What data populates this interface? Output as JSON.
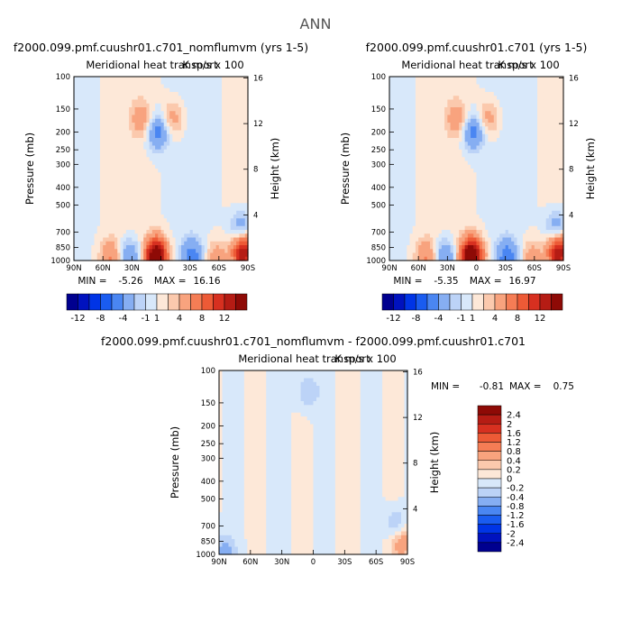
{
  "title": "ANN",
  "variable": "Meridional heat transport",
  "units": "K m/s x 100",
  "ylabel": "Pressure (mb)",
  "ylabel_right": "Height (km)",
  "chart_data": [
    {
      "type": "heatmap",
      "case": "f2000.099.pmf.cuushr01.c701_nomflumvm (yrs 1-5)",
      "x_ticks": [
        "90N",
        "60N",
        "30N",
        "0",
        "30S",
        "60S",
        "90S"
      ],
      "x_values": [
        90,
        60,
        30,
        0,
        -30,
        -60,
        -90
      ],
      "y_ticks": [
        "100",
        "150",
        "200",
        "250",
        "300",
        "400",
        "500",
        "700",
        "850",
        "1000"
      ],
      "y_values": [
        100,
        150,
        200,
        250,
        300,
        400,
        500,
        700,
        850,
        1000
      ],
      "ylim": [
        100,
        1000
      ],
      "y_scale": "log",
      "height_ticks": [
        "16",
        "12",
        "8",
        "4"
      ],
      "height_values": [
        16,
        12,
        8,
        4
      ],
      "min_label": "MIN =",
      "min": "-5.26",
      "max_label": "MAX =",
      "max": "16.16",
      "levels": [
        -12,
        -10,
        -8,
        -6,
        -4,
        -2,
        -1,
        0,
        1,
        2,
        4,
        6,
        8,
        10,
        12
      ],
      "colorbar_labels": [
        "-12",
        "-8",
        "-4",
        "-1",
        "1",
        "4",
        "8",
        "12"
      ],
      "features": [
        {
          "lat": 5,
          "p": 950,
          "value": 16.0
        },
        {
          "lat": -32,
          "p": 960,
          "value": -5.0
        },
        {
          "lat": 32,
          "p": 960,
          "value": -4.5
        },
        {
          "lat": 52,
          "p": 960,
          "value": 4.0
        },
        {
          "lat": -57,
          "p": 960,
          "value": 3.0
        },
        {
          "lat": -85,
          "p": 900,
          "value": 12.0
        },
        {
          "lat": -83,
          "p": 680,
          "value": -4.0
        },
        {
          "lat": 3,
          "p": 200,
          "value": -5.0
        },
        {
          "lat": 20,
          "p": 170,
          "value": 3.0
        },
        {
          "lat": -12,
          "p": 170,
          "value": 3.0
        }
      ]
    },
    {
      "type": "heatmap",
      "case": "f2000.099.pmf.cuushr01.c701 (yrs 1-5)",
      "x_ticks": [
        "90N",
        "60N",
        "30N",
        "0",
        "30S",
        "60S",
        "90S"
      ],
      "x_values": [
        90,
        60,
        30,
        0,
        -30,
        -60,
        -90
      ],
      "y_ticks": [
        "100",
        "150",
        "200",
        "250",
        "300",
        "400",
        "500",
        "700",
        "850",
        "1000"
      ],
      "y_values": [
        100,
        150,
        200,
        250,
        300,
        400,
        500,
        700,
        850,
        1000
      ],
      "ylim": [
        100,
        1000
      ],
      "y_scale": "log",
      "height_ticks": [
        "16",
        "12",
        "8",
        "4"
      ],
      "height_values": [
        16,
        12,
        8,
        4
      ],
      "min_label": "MIN =",
      "min": "-5.35",
      "max_label": "MAX =",
      "max": "16.97",
      "levels": [
        -12,
        -10,
        -8,
        -6,
        -4,
        -2,
        -1,
        0,
        1,
        2,
        4,
        6,
        8,
        10,
        12
      ],
      "colorbar_labels": [
        "-12",
        "-8",
        "-4",
        "-1",
        "1",
        "4",
        "8",
        "12"
      ],
      "features": [
        {
          "lat": 5,
          "p": 950,
          "value": 17.0
        },
        {
          "lat": -32,
          "p": 960,
          "value": -5.2
        },
        {
          "lat": 32,
          "p": 960,
          "value": -4.5
        },
        {
          "lat": 52,
          "p": 960,
          "value": 4.0
        },
        {
          "lat": -57,
          "p": 960,
          "value": 3.0
        },
        {
          "lat": -85,
          "p": 900,
          "value": 12.0
        },
        {
          "lat": -83,
          "p": 680,
          "value": -4.0
        },
        {
          "lat": 3,
          "p": 200,
          "value": -5.0
        },
        {
          "lat": 20,
          "p": 170,
          "value": 3.0
        },
        {
          "lat": -12,
          "p": 170,
          "value": 3.0
        }
      ]
    },
    {
      "type": "heatmap",
      "case": "f2000.099.pmf.cuushr01.c701_nomflumvm - f2000.099.pmf.cuushr01.c701",
      "x_ticks": [
        "90N",
        "60N",
        "30N",
        "0",
        "30S",
        "60S",
        "90S"
      ],
      "x_values": [
        90,
        60,
        30,
        0,
        -30,
        -60,
        -90
      ],
      "y_ticks": [
        "100",
        "150",
        "200",
        "250",
        "300",
        "400",
        "500",
        "700",
        "850",
        "1000"
      ],
      "y_values": [
        100,
        150,
        200,
        250,
        300,
        400,
        500,
        700,
        850,
        1000
      ],
      "ylim": [
        100,
        1000
      ],
      "y_scale": "log",
      "height_ticks": [
        "16",
        "12",
        "8",
        "4"
      ],
      "height_values": [
        16,
        12,
        8,
        4
      ],
      "min_label": "MIN =",
      "min": "-0.81",
      "max_label": "MAX =",
      "max": "0.75",
      "levels": [
        -2.4,
        -2,
        -1.6,
        -1.2,
        -0.8,
        -0.4,
        -0.2,
        0,
        0.2,
        0.4,
        0.8,
        1.2,
        1.6,
        2,
        2.4
      ],
      "colorbar_labels": [
        "2.4",
        "2",
        "1.6",
        "1.2",
        "0.8",
        "0.4",
        "0.2",
        "0",
        "-0.2",
        "-0.4",
        "-0.8",
        "-1.2",
        "-1.6",
        "-2",
        "-2.4"
      ],
      "features": [
        {
          "lat": -85,
          "p": 850,
          "value": 0.7
        },
        {
          "lat": -80,
          "p": 700,
          "value": -0.5
        },
        {
          "lat": 85,
          "p": 970,
          "value": -0.5
        },
        {
          "lat": 5,
          "p": 130,
          "value": -0.4
        }
      ]
    }
  ],
  "colors": {
    "neg": [
      "#00008f",
      "#0012bf",
      "#0034e6",
      "#1a5cf0",
      "#4a86f2",
      "#86aef2",
      "#bcd3f7",
      "#d8e8fa"
    ],
    "pos": [
      "#fde8d8",
      "#fbc9ad",
      "#f8a37e",
      "#f57d55",
      "#ed5a36",
      "#d73020",
      "#b51c14",
      "#8e0a06"
    ]
  }
}
